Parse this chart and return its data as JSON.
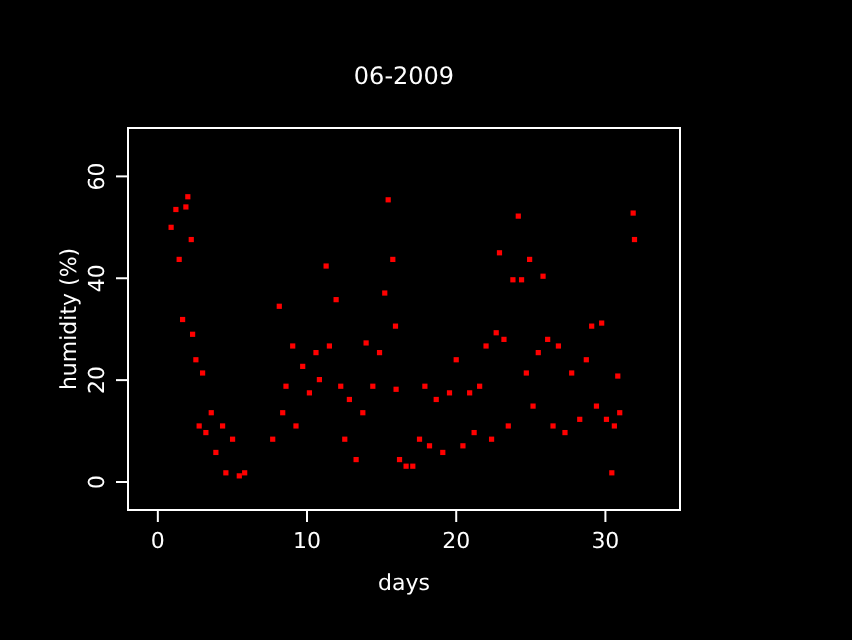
{
  "chart_data": {
    "type": "scatter",
    "title": "06-2009",
    "xlabel": "days",
    "ylabel": "humidity (%)",
    "xlim": [
      -2,
      35
    ],
    "ylim": [
      -5.5,
      69.5
    ],
    "xticks": [
      0,
      10,
      20,
      30
    ],
    "yticks": [
      0,
      20,
      40,
      60
    ],
    "grid": false,
    "marker": "square",
    "series": [
      {
        "color": "#ff0000",
        "x": [
          0.89,
          1.21,
          1.43,
          1.66,
          1.88,
          2.01,
          2.24,
          2.33,
          2.55,
          2.77,
          3.0,
          3.22,
          3.58,
          3.89,
          4.34,
          4.56,
          5.01,
          5.46,
          5.82,
          7.7,
          8.14,
          8.37,
          8.59,
          9.04,
          9.26,
          9.71,
          10.16,
          10.6,
          10.83,
          11.28,
          11.5,
          11.95,
          12.26,
          12.53,
          12.84,
          13.29,
          13.74,
          13.96,
          14.41,
          14.86,
          15.21,
          15.44,
          15.75,
          15.93,
          15.97,
          16.2,
          16.64,
          17.09,
          17.54,
          17.9,
          18.21,
          18.66,
          19.1,
          19.55,
          20.0,
          20.45,
          20.9,
          21.2,
          21.57,
          22.0,
          22.37,
          22.68,
          22.9,
          23.2,
          23.49,
          23.8,
          24.16,
          24.38,
          24.7,
          24.92,
          25.15,
          25.5,
          25.82,
          26.13,
          26.49,
          26.85,
          27.29,
          27.74,
          28.28,
          28.72,
          29.08,
          29.4,
          29.75,
          30.07,
          30.43,
          30.6,
          30.83,
          30.96,
          31.86,
          31.95
        ],
        "values": [
          50,
          53.5,
          43.7,
          31.9,
          54,
          56,
          47.6,
          29,
          24,
          11,
          21.4,
          9.7,
          13.6,
          5.8,
          11,
          1.8,
          8.4,
          1.2,
          1.8,
          8.4,
          34.5,
          13.6,
          18.8,
          26.7,
          11,
          22.7,
          17.5,
          25.4,
          20.1,
          42.4,
          26.7,
          35.8,
          18.8,
          8.4,
          16.2,
          4.4,
          13.6,
          27.3,
          18.8,
          25.4,
          37.1,
          55.4,
          43.7,
          30.6,
          18.2,
          4.4,
          3.1,
          3.1,
          8.4,
          18.8,
          7.1,
          16.2,
          5.8,
          17.5,
          24,
          7.1,
          17.5,
          9.7,
          18.8,
          26.7,
          8.4,
          29.3,
          45,
          28,
          11,
          39.7,
          52.2,
          39.7,
          21.4,
          43.7,
          14.9,
          25.4,
          40.4,
          28,
          11,
          26.7,
          9.7,
          21.4,
          12.3,
          24,
          30.6,
          14.9,
          31.2,
          12.3,
          1.8,
          11,
          20.8,
          13.6,
          52.8,
          47.6
        ]
      }
    ]
  }
}
